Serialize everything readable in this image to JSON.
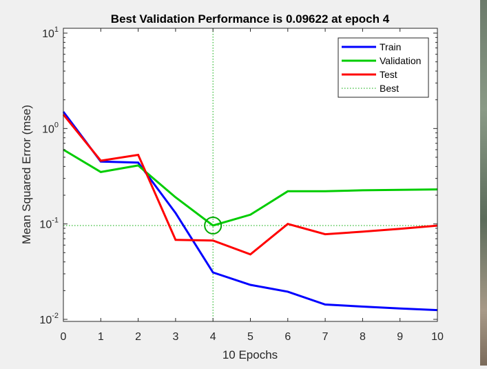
{
  "chart_data": {
    "type": "line",
    "title": "Best Validation Performance is 0.09622 at epoch 4",
    "xlabel": "10 Epochs",
    "ylabel": "Mean Squared Error  (mse)",
    "xlim": [
      0,
      10
    ],
    "ylim": [
      0.01,
      13
    ],
    "yscale": "log",
    "grid": false,
    "legend_position": "top-right",
    "x_ticks": [
      0,
      1,
      2,
      3,
      4,
      5,
      6,
      7,
      8,
      9,
      10
    ],
    "y_ticks": [
      {
        "base": "10",
        "exp": "-2",
        "value": 0.01
      },
      {
        "base": "10",
        "exp": "-1",
        "value": 0.1
      },
      {
        "base": "10",
        "exp": "0",
        "value": 1
      },
      {
        "base": "10",
        "exp": "1",
        "value": 10
      }
    ],
    "x": [
      0,
      1,
      2,
      3,
      4,
      5,
      6,
      7,
      8,
      9,
      10
    ],
    "series": [
      {
        "name": "Train",
        "color": "#0000ff",
        "values": [
          1.5,
          0.45,
          0.44,
          0.13,
          0.031,
          0.023,
          0.0195,
          0.0143,
          0.0136,
          0.013,
          0.0125
        ]
      },
      {
        "name": "Validation",
        "color": "#00cc00",
        "values": [
          0.6,
          0.35,
          0.41,
          0.19,
          0.0962,
          0.125,
          0.22,
          0.22,
          0.225,
          0.228,
          0.23
        ]
      },
      {
        "name": "Test",
        "color": "#ff0000",
        "values": [
          1.4,
          0.46,
          0.53,
          0.068,
          0.067,
          0.048,
          0.1,
          0.078,
          0.083,
          0.089,
          0.096
        ]
      }
    ],
    "best": {
      "name": "Best",
      "epoch": 4,
      "value": 0.09622,
      "color": "#00aa00"
    }
  }
}
